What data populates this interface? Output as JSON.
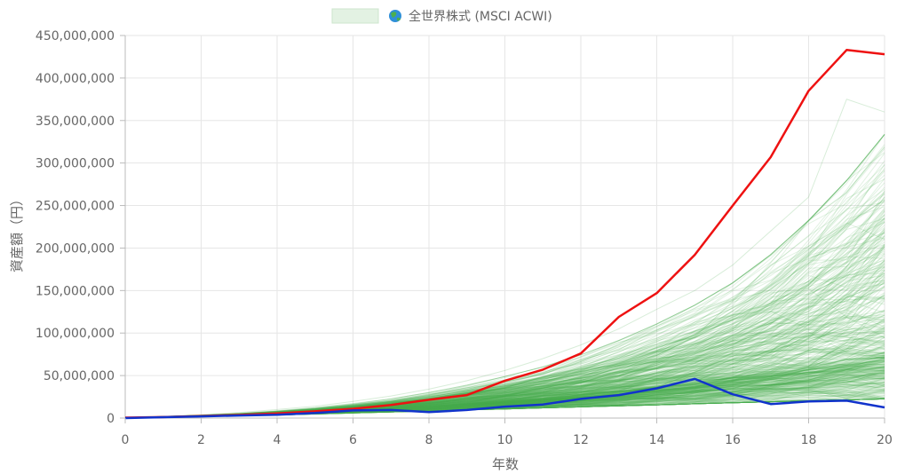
{
  "chart_data": {
    "type": "line",
    "legend": {
      "placement": "top-center",
      "icon": "globe-icon",
      "label": "全世界株式 (MSCI ACWI)",
      "swatch_color": "#e3f2e3"
    },
    "xlabel": "年数",
    "ylabel": "資産額（円）",
    "xlim": [
      0,
      20
    ],
    "ylim": [
      0,
      450000000
    ],
    "x_ticks": [
      0,
      2,
      4,
      6,
      8,
      10,
      12,
      14,
      16,
      18,
      20
    ],
    "x_tick_labels": [
      "0",
      "2",
      "4",
      "6",
      "8",
      "10",
      "12",
      "14",
      "16",
      "18",
      "20"
    ],
    "y_ticks": [
      0,
      50000000,
      100000000,
      150000000,
      200000000,
      250000000,
      300000000,
      350000000,
      400000000,
      450000000
    ],
    "y_tick_labels": [
      "0",
      "50,000,000",
      "100,000,000",
      "150,000,000",
      "200,000,000",
      "250,000,000",
      "300,000,000",
      "350,000,000",
      "400,000,000",
      "450,000,000"
    ],
    "grid": true,
    "x": [
      0,
      1,
      2,
      3,
      4,
      5,
      6,
      7,
      8,
      9,
      10,
      11,
      12,
      13,
      14,
      15,
      16,
      17,
      18,
      19,
      20
    ],
    "series": [
      {
        "color": "#ee1111",
        "values": [
          500000,
          1200000,
          2300000,
          3700000,
          5400000,
          7900000,
          11000000,
          15500000,
          21500000,
          27000000,
          44000000,
          57000000,
          76000000,
          119000000,
          147000000,
          192000000,
          250000000,
          307000000,
          385000000,
          433000000,
          428000000
        ]
      },
      {
        "color": "#1133cc",
        "values": [
          0,
          1000000,
          2000000,
          3000000,
          4000000,
          6000000,
          9000000,
          9500000,
          7000000,
          9500000,
          13500000,
          16000000,
          22500000,
          27000000,
          35000000,
          46000000,
          28000000,
          16500000,
          19500000,
          20500000,
          12500000
        ]
      }
    ],
    "simulation_band": {
      "color": "#4caf50",
      "path_count": 500,
      "median": [
        500000,
        1300000,
        2300000,
        3500000,
        4900000,
        6600000,
        8600000,
        11000000,
        13800000,
        16800000,
        20000000,
        23700000,
        27800000,
        32000000,
        37000000,
        42500000,
        48500000,
        55000000,
        62000000,
        70000000,
        78000000
      ],
      "low": [
        500000,
        1000000,
        1800000,
        2700000,
        3600000,
        4800000,
        6000000,
        7200000,
        8400000,
        9600000,
        10800000,
        12000000,
        13200000,
        14400000,
        15600000,
        16800000,
        18000000,
        19200000,
        20400000,
        21500000,
        22500000
      ],
      "high": [
        500000,
        1700000,
        3200000,
        5000000,
        7500000,
        10500000,
        14500000,
        19000000,
        25000000,
        32000000,
        40000000,
        49000000,
        60000000,
        73000000,
        88000000,
        105000000,
        125000000,
        150000000,
        180000000,
        215000000,
        255000000
      ],
      "max": [
        500000,
        2000000,
        4000000,
        6500000,
        10000000,
        14000000,
        19500000,
        26000000,
        34000000,
        44000000,
        56000000,
        70000000,
        86000000,
        105000000,
        128000000,
        150000000,
        180000000,
        220000000,
        260000000,
        375000000,
        360000000
      ]
    }
  }
}
